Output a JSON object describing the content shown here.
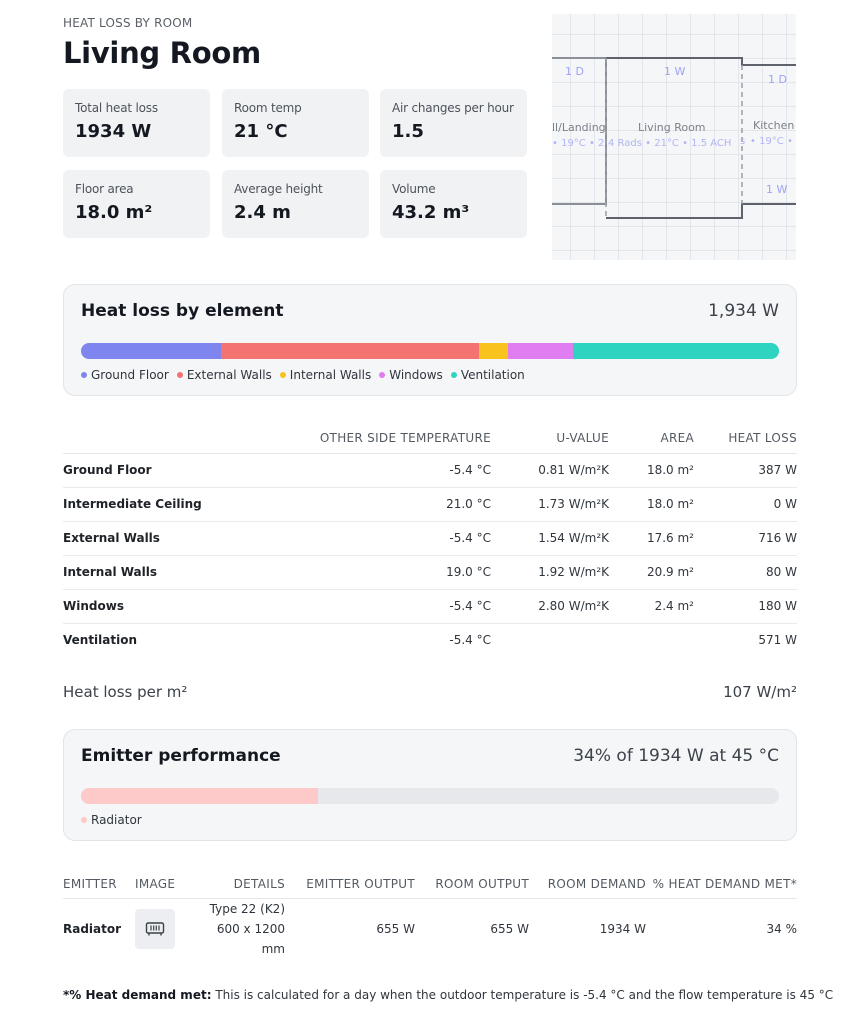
{
  "header": {
    "eyebrow": "HEAT LOSS BY ROOM",
    "title": "Living Room"
  },
  "stats": [
    {
      "label": "Total heat loss",
      "value": "1934 W"
    },
    {
      "label": "Room temp",
      "value": "21 °C"
    },
    {
      "label": "Air changes per hour",
      "value": "1.5"
    },
    {
      "label": "Floor area",
      "value": "18.0 m²"
    },
    {
      "label": "Average height",
      "value": "2.4 m"
    },
    {
      "label": "Volume",
      "value": "43.2 m³"
    }
  ],
  "floorplan": {
    "labels": [
      "1 D",
      "1 W",
      "1 D",
      "ll/Landing",
      "Living Room",
      "Kitchen",
      "• 19°C • 2 ",
      "4 Rads • 21°C • 1.5 ACH",
      "s",
      "• 19°C •",
      "1 W"
    ]
  },
  "elements": {
    "title": "Heat loss by element",
    "total": "1,934 W",
    "segments": [
      {
        "name": "Ground Floor",
        "value": 387,
        "color": "#7f85ee"
      },
      {
        "name": "External Walls",
        "value": 716,
        "color": "#f4726f"
      },
      {
        "name": "Internal Walls",
        "value": 80,
        "color": "#f7c31c"
      },
      {
        "name": "Windows",
        "value": 180,
        "color": "#e07df0"
      },
      {
        "name": "Ventilation",
        "value": 571,
        "color": "#2ed4c0"
      }
    ]
  },
  "fabric_table": {
    "headers": [
      "",
      "OTHER SIDE TEMPERATURE",
      "U-VALUE",
      "AREA",
      "HEAT LOSS"
    ],
    "rows": [
      [
        "Ground Floor",
        "-5.4 °C",
        "0.81 W/m²K",
        "18.0 m²",
        "387 W"
      ],
      [
        "Intermediate Ceiling",
        "21.0 °C",
        "1.73 W/m²K",
        "18.0 m²",
        "0 W"
      ],
      [
        "External Walls",
        "-5.4 °C",
        "1.54 W/m²K",
        "17.6 m²",
        "716 W"
      ],
      [
        "Internal Walls",
        "19.0 °C",
        "1.92 W/m²K",
        "20.9 m²",
        "80 W"
      ],
      [
        "Windows",
        "-5.4 °C",
        "2.80 W/m²K",
        "2.4 m²",
        "180 W"
      ],
      [
        "Ventilation",
        "-5.4 °C",
        "",
        "",
        "571 W"
      ]
    ]
  },
  "per_m2": {
    "label": "Heat loss per m²",
    "value": "107 W/m²"
  },
  "emitter_perf": {
    "title": "Emitter performance",
    "summary": "34% of 1934 W at 45 °C",
    "percent": 34,
    "fill_color": "#fdc9c9",
    "legend": "Radiator"
  },
  "emitter_table": {
    "headers": [
      "EMITTER",
      "IMAGE",
      "DETAILS",
      "EMITTER OUTPUT",
      "ROOM OUTPUT",
      "ROOM DEMAND",
      "% HEAT DEMAND MET*"
    ],
    "rows": [
      {
        "emitter": "Radiator",
        "icon": "radiator-icon",
        "details_1": "Type 22 (K2)",
        "details_2": "600 x 1200 mm",
        "emitter_output": "655 W",
        "room_output": "655 W",
        "room_demand": "1934 W",
        "met": "34 %"
      }
    ]
  },
  "footnote": {
    "label": "*% Heat demand met:",
    "text": " This is calculated for a day when the outdoor temperature is -5.4 °C and the flow temperature is 45 °C"
  }
}
